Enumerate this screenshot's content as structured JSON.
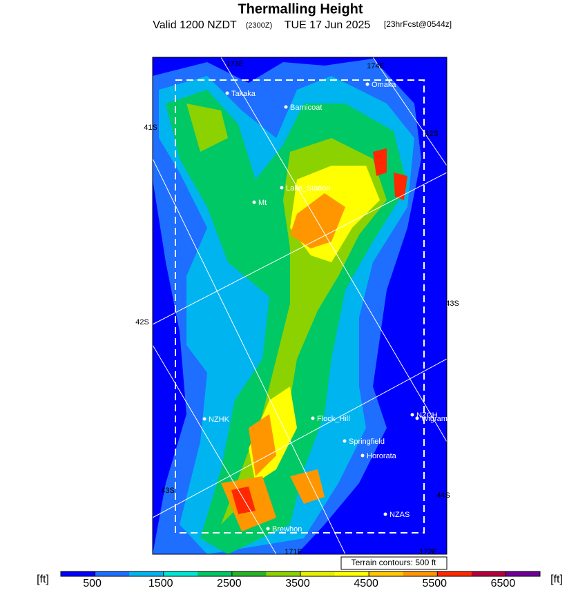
{
  "header": {
    "title": "Thermalling Height",
    "valid": "Valid 1200 NZDT",
    "zulu": "(2300Z)",
    "date": "TUE 17 Jun 2025",
    "forecast": "[23hrFcst@0544z]"
  },
  "map": {
    "places": [
      "Takaka",
      "Barnicoat",
      "Omaka",
      "Lake_Station",
      "Mt",
      "NZHK",
      "Flock_Hill",
      "NZCH",
      "Wigram",
      "Springfield",
      "Hororata",
      "NZAS",
      "Brewhon"
    ],
    "grid_labels": [
      "173E",
      "174E",
      "41S",
      "42S",
      "42S",
      "43S",
      "43S",
      "44S",
      "171E",
      "172E"
    ],
    "note": "Terrain contours: 500 ft"
  },
  "colorbar": {
    "unit": "[ft]",
    "lim": [
      0,
      7000
    ],
    "ticks": [
      500,
      1500,
      2500,
      3500,
      4500,
      5500,
      6500
    ],
    "colors": [
      "#0000ff",
      "#1e6eff",
      "#00b4f0",
      "#00e6d2",
      "#00c864",
      "#28b428",
      "#8cd200",
      "#e6f000",
      "#ffff00",
      "#ffc800",
      "#ff9600",
      "#ff2800",
      "#b4003c",
      "#6e0096"
    ]
  }
}
